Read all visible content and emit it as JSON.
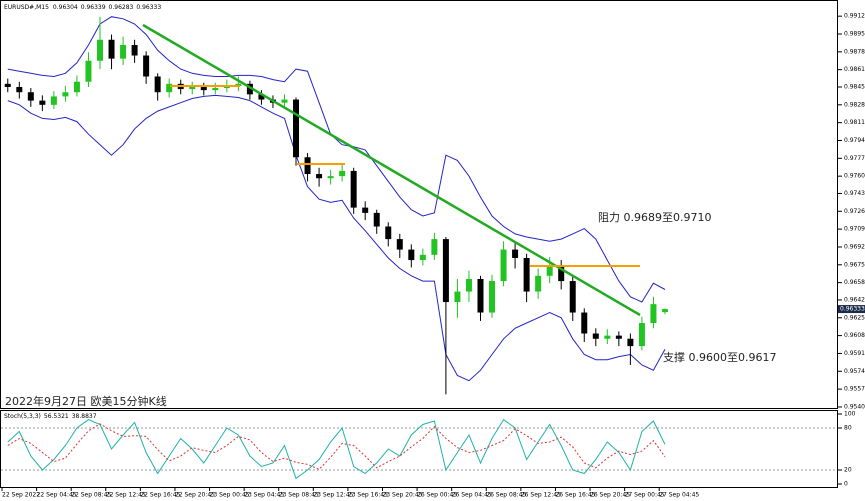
{
  "chart_data": [
    {
      "type": "candlestick",
      "title": "EURUSD#,M15",
      "categories": [
        "22 Sep 2022",
        null,
        null,
        "22 Sep 04:45",
        null,
        null,
        "22 Sep 08:45",
        null,
        null,
        "22 Sep 12:45",
        null,
        null,
        "22 Sep 16:45",
        null,
        null,
        "22 Sep 20:45",
        null,
        null,
        "23 Sep 00:45",
        null,
        null,
        "23 Sep 04:45",
        null,
        null,
        "23 Sep 08:45",
        null,
        null,
        "23 Sep 12:45",
        null,
        null,
        "23 Sep 16:45",
        null,
        null,
        "23 Sep 20:45",
        null,
        null,
        "26 Sep 00:45",
        null,
        null,
        "26 Sep 04:45",
        null,
        null,
        "26 Sep 08:45",
        null,
        null,
        "26 Sep 12:45",
        null,
        null,
        "26 Sep 16:45",
        null,
        null,
        "26 Sep 20:45",
        null,
        null,
        "27 Sep 00:45",
        null,
        null,
        "27 Sep 04:45"
      ],
      "open": [
        0.9848,
        0.9845,
        0.984,
        0.9832,
        0.9828,
        0.9836,
        0.984,
        0.985,
        0.987,
        0.989,
        0.9872,
        0.9885,
        0.9875,
        0.9855,
        0.984,
        0.9848,
        0.9843,
        0.9845,
        0.9842,
        0.9844,
        0.9846,
        0.9848,
        0.9838,
        0.9833,
        0.983,
        0.9833,
        0.9778,
        0.9762,
        0.9758,
        0.976,
        0.9765,
        0.973,
        0.9725,
        0.9712,
        0.97,
        0.969,
        0.968,
        0.9685,
        0.97,
        0.964,
        0.965,
        0.9662,
        0.963,
        0.966,
        0.969,
        0.9682,
        0.965,
        0.9665,
        0.9675,
        0.966,
        0.963,
        0.961,
        0.9605,
        0.9608,
        0.9605,
        0.9598,
        0.962,
        0.96304
      ],
      "high": [
        0.9853,
        0.985,
        0.9844,
        0.9837,
        0.9841,
        0.9846,
        0.9856,
        0.9878,
        0.9912,
        0.9895,
        0.9893,
        0.989,
        0.9879,
        0.9858,
        0.9853,
        0.9852,
        0.985,
        0.9849,
        0.9849,
        0.9852,
        0.9855,
        0.9851,
        0.9842,
        0.9837,
        0.9838,
        0.9835,
        0.9782,
        0.9768,
        0.9766,
        0.9772,
        0.9768,
        0.9736,
        0.9728,
        0.9716,
        0.9705,
        0.9695,
        0.9691,
        0.9706,
        0.9702,
        0.9662,
        0.967,
        0.9665,
        0.9666,
        0.9698,
        0.9696,
        0.9686,
        0.9672,
        0.9683,
        0.968,
        0.9664,
        0.9634,
        0.9615,
        0.9614,
        0.9612,
        0.961,
        0.9626,
        0.9645,
        0.96339
      ],
      "low": [
        0.984,
        0.9834,
        0.9826,
        0.9822,
        0.9824,
        0.9831,
        0.9836,
        0.9845,
        0.9862,
        0.9862,
        0.9866,
        0.9868,
        0.9848,
        0.9832,
        0.9835,
        0.9838,
        0.9838,
        0.9837,
        0.9838,
        0.984,
        0.9841,
        0.9833,
        0.9828,
        0.9825,
        0.9826,
        0.977,
        0.9755,
        0.975,
        0.9752,
        0.9755,
        0.9724,
        0.9718,
        0.9705,
        0.9693,
        0.9682,
        0.9673,
        0.9675,
        0.968,
        0.9552,
        0.9625,
        0.964,
        0.9622,
        0.9625,
        0.9655,
        0.9672,
        0.964,
        0.9643,
        0.9658,
        0.9652,
        0.9622,
        0.9602,
        0.9598,
        0.96,
        0.9598,
        0.958,
        0.9594,
        0.9615,
        0.96283
      ],
      "close": [
        0.9845,
        0.984,
        0.9832,
        0.9828,
        0.9836,
        0.984,
        0.985,
        0.987,
        0.989,
        0.9872,
        0.9885,
        0.9875,
        0.9855,
        0.984,
        0.9848,
        0.9843,
        0.9845,
        0.9842,
        0.9844,
        0.9846,
        0.9848,
        0.9838,
        0.9833,
        0.983,
        0.9833,
        0.9778,
        0.9762,
        0.9758,
        0.976,
        0.9765,
        0.973,
        0.9725,
        0.9712,
        0.97,
        0.969,
        0.968,
        0.9685,
        0.97,
        0.964,
        0.965,
        0.9662,
        0.963,
        0.966,
        0.969,
        0.9682,
        0.965,
        0.9665,
        0.9675,
        0.966,
        0.963,
        0.961,
        0.9605,
        0.9608,
        0.9605,
        0.9598,
        0.962,
        0.9638,
        0.96333
      ],
      "up_color": "#22c422",
      "down_color": "#000000",
      "overlays": [
        {
          "color": "#2424c8",
          "values": [
            0.9862,
            0.986,
            0.9858,
            0.9856,
            0.9855,
            0.9858,
            0.9868,
            0.9885,
            0.9905,
            0.9912,
            0.991,
            0.9905,
            0.9895,
            0.988,
            0.987,
            0.9862,
            0.9858,
            0.9856,
            0.9855,
            0.9855,
            0.9856,
            0.9856,
            0.9855,
            0.9852,
            0.985,
            0.9862,
            0.986,
            0.983,
            0.98,
            0.979,
            0.9788,
            0.9785,
            0.977,
            0.9755,
            0.974,
            0.9728,
            0.9722,
            0.9725,
            0.978,
            0.9775,
            0.976,
            0.974,
            0.9722,
            0.9712,
            0.9705,
            0.9702,
            0.97,
            0.9698,
            0.97,
            0.9705,
            0.971,
            0.97,
            0.968,
            0.966,
            0.9645,
            0.964,
            0.9658,
            0.9652
          ]
        },
        {
          "color": "#2424c8",
          "values": [
            0.9832,
            0.9828,
            0.982,
            0.9815,
            0.9814,
            0.9816,
            0.9812,
            0.98,
            0.979,
            0.978,
            0.979,
            0.9805,
            0.9815,
            0.9822,
            0.9826,
            0.983,
            0.9834,
            0.9836,
            0.9837,
            0.9836,
            0.9835,
            0.9832,
            0.9826,
            0.982,
            0.9815,
            0.978,
            0.975,
            0.9738,
            0.9735,
            0.9737,
            0.972,
            0.9708,
            0.9695,
            0.9682,
            0.9672,
            0.9665,
            0.966,
            0.966,
            0.959,
            0.957,
            0.9565,
            0.9575,
            0.959,
            0.9605,
            0.9615,
            0.962,
            0.9625,
            0.963,
            0.9625,
            0.9605,
            0.959,
            0.9585,
            0.9585,
            0.9588,
            0.959,
            0.958,
            0.9575,
            0.9595
          ]
        }
      ],
      "ylim": [
        0.9539,
        0.9926
      ],
      "yticks": [
        0.99125,
        0.98955,
        0.98785,
        0.98615,
        {
          "value": 0.9845,
          "label": "0.98450"
        },
        {
          "value": 0.9828,
          "label": "0.98280"
        },
        {
          "value": 0.9811,
          "label": "0.98110"
        },
        {
          "value": 0.9794,
          "label": "0.97940"
        },
        {
          "value": 0.9777,
          "label": "0.97770"
        },
        {
          "value": 0.976,
          "label": "0.97600"
        },
        0.97435,
        0.97265,
        0.97095,
        0.96925,
        0.96755,
        0.96585,
        {
          "value": 0.9642,
          "label": "0.96420"
        },
        {
          "value": 0.9625,
          "label": "0.96250"
        },
        {
          "value": 0.9608,
          "label": "0.96080"
        },
        {
          "value": 0.9591,
          "label": "0.95910"
        },
        {
          "value": 0.9574,
          "label": "0.95740"
        },
        {
          "value": 0.9557,
          "label": "0.95570"
        },
        {
          "value": 0.954,
          "label": "0.95400"
        }
      ],
      "annotations": [
        "阻力 0.9689至0.9710",
        "支撑 0.9600至0.9617",
        "2022年9月27日 欧美15分钟K线"
      ]
    },
    {
      "type": "line",
      "title": "Stoch(5,3,3)",
      "series": [
        {
          "color": "#20b2aa",
          "values": [
            60,
            75,
            40,
            20,
            35,
            55,
            80,
            92,
            85,
            50,
            70,
            88,
            45,
            15,
            40,
            65,
            50,
            30,
            55,
            80,
            70,
            40,
            25,
            30,
            55,
            8,
            20,
            35,
            60,
            80,
            25,
            15,
            30,
            50,
            40,
            70,
            85,
            90,
            20,
            45,
            70,
            30,
            65,
            92,
            80,
            35,
            60,
            85,
            55,
            20,
            15,
            35,
            60,
            45,
            20,
            75,
            90,
            56.5321
          ]
        },
        {
          "color": "#e03030",
          "values": [
            55,
            65,
            58,
            45,
            32,
            37,
            57,
            76,
            86,
            76,
            68,
            69,
            68,
            49,
            33,
            40,
            52,
            48,
            45,
            55,
            68,
            63,
            45,
            32,
            37,
            31,
            28,
            21,
            38,
            58,
            55,
            40,
            23,
            32,
            40,
            53,
            65,
            82,
            65,
            52,
            45,
            48,
            55,
            62,
            79,
            69,
            58,
            60,
            67,
            53,
            30,
            23,
            37,
            47,
            42,
            47,
            62,
            38.8837
          ]
        }
      ],
      "ylim": [
        0,
        100
      ],
      "yticks": [
        0,
        20,
        80,
        100
      ]
    }
  ]
}
